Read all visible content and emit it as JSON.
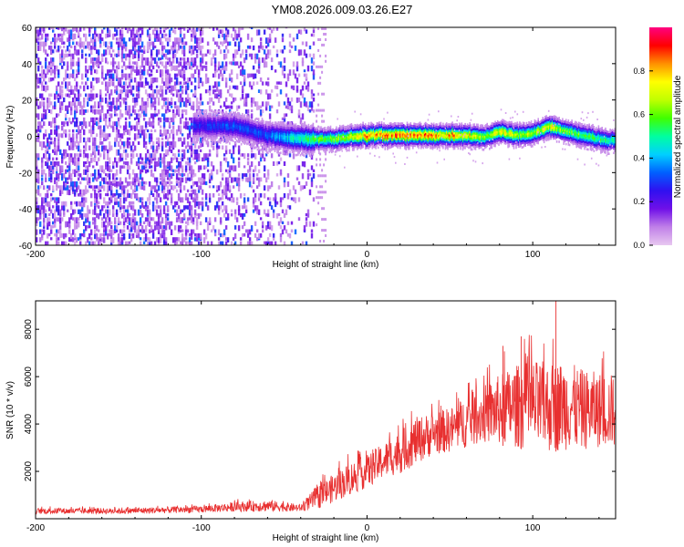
{
  "title": "YM08.2026.009.03.26.E27",
  "chart_data": [
    {
      "type": "heatmap",
      "xlabel": "Height of straight line (km)",
      "ylabel": "Frequency (Hz)",
      "xlim": [
        -200,
        150
      ],
      "ylim": [
        -60,
        60
      ],
      "xticks": [
        -200,
        -100,
        0,
        100
      ],
      "yticks": [
        -60,
        -40,
        -20,
        0,
        20,
        40,
        60
      ],
      "colorbar": {
        "label": "Normalized spectral amplitude",
        "range": [
          0,
          1
        ],
        "ticks": [
          0.0,
          0.2,
          0.4,
          0.6,
          0.8
        ],
        "colormap": [
          "#e8c8f0",
          "#c080e8",
          "#7010e8",
          "#3010f0",
          "#0060ff",
          "#00d0ff",
          "#00ffa0",
          "#40ff00",
          "#c0ff00",
          "#ffff00",
          "#ff9000",
          "#ff0000",
          "#ff0080"
        ]
      },
      "ridge": {
        "x": [
          -100,
          -80,
          -60,
          -40,
          -20,
          0,
          20,
          40,
          60,
          70,
          80,
          90,
          100,
          110,
          120,
          130,
          140,
          150
        ],
        "freq": [
          5,
          5,
          0,
          -2,
          -2,
          0,
          0,
          0,
          0,
          -1,
          2,
          0,
          1,
          5,
          2,
          0,
          -2,
          -3
        ],
        "peak_amplitude": [
          0.25,
          0.3,
          0.3,
          0.5,
          0.6,
          0.75,
          0.85,
          0.8,
          0.75,
          0.6,
          0.7,
          0.65,
          0.6,
          0.7,
          0.6,
          0.55,
          0.5,
          0.5
        ]
      },
      "noise_region": {
        "x_from": -200,
        "x_to": -32,
        "amplitude": 0.15
      }
    },
    {
      "type": "line",
      "xlabel": "Height of straight line (km)",
      "ylabel": "SNR (10 * v/v)",
      "xlim": [
        -200,
        150
      ],
      "ylim": [
        0,
        9200
      ],
      "xticks": [
        -200,
        -100,
        0,
        100
      ],
      "yticks": [
        2000,
        4000,
        6000,
        8000
      ],
      "color": "#e83030",
      "envelope": {
        "x": [
          -200,
          -150,
          -100,
          -80,
          -60,
          -40,
          -30,
          -20,
          -10,
          0,
          10,
          20,
          30,
          40,
          50,
          60,
          70,
          80,
          90,
          100,
          110,
          120,
          130,
          140,
          150
        ],
        "low": [
          200,
          200,
          250,
          300,
          300,
          300,
          400,
          700,
          1000,
          1300,
          1700,
          1900,
          2300,
          2700,
          2800,
          3000,
          3200,
          3100,
          3000,
          2800,
          2800,
          2900,
          2900,
          3000,
          3000
        ],
        "high": [
          450,
          450,
          550,
          700,
          800,
          600,
          1400,
          1900,
          2400,
          2700,
          3200,
          3700,
          4300,
          4500,
          4700,
          5200,
          5600,
          6100,
          6500,
          6700,
          6600,
          6700,
          6300,
          6200,
          6100
        ]
      },
      "spikes": [
        {
          "x": 114,
          "y": 9200
        },
        {
          "x": 93,
          "y": 7700
        },
        {
          "x": 82,
          "y": 7300
        }
      ]
    }
  ]
}
